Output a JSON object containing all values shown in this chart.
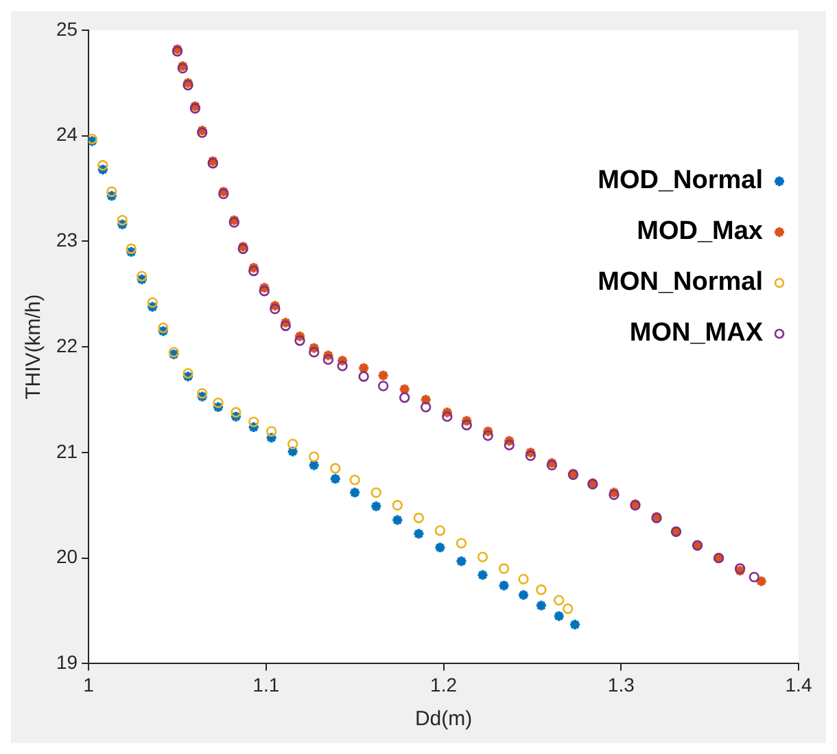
{
  "chart_data": {
    "type": "scatter",
    "xlabel": "Dd(m)",
    "ylabel": "THIV(km/h)",
    "xlim": [
      1,
      1.4
    ],
    "xticks": [
      1,
      1.1,
      1.2,
      1.3,
      1.4
    ],
    "ylim": [
      19,
      25
    ],
    "yticks": [
      19,
      20,
      21,
      22,
      23,
      24,
      25
    ],
    "grid": false,
    "legend": "top right",
    "series": [
      {
        "name": "MOD_Normal",
        "color": "#0072bd",
        "marker": "cross",
        "x": [
          1.002,
          1.008,
          1.013,
          1.019,
          1.024,
          1.03,
          1.036,
          1.042,
          1.048,
          1.056,
          1.064,
          1.073,
          1.083,
          1.093,
          1.103,
          1.115,
          1.127,
          1.139,
          1.15,
          1.162,
          1.174,
          1.186,
          1.198,
          1.21,
          1.222,
          1.234,
          1.245,
          1.255,
          1.265,
          1.274
        ],
        "values": [
          23.95,
          23.68,
          23.43,
          23.16,
          22.9,
          22.64,
          22.38,
          22.15,
          21.93,
          21.72,
          21.53,
          21.43,
          21.34,
          21.24,
          21.14,
          21.01,
          20.88,
          20.75,
          20.62,
          20.49,
          20.36,
          20.23,
          20.1,
          19.97,
          19.84,
          19.74,
          19.65,
          19.55,
          19.45,
          19.37
        ]
      },
      {
        "name": "MOD_Max",
        "color": "#d95319",
        "marker": "cross",
        "x": [
          1.05,
          1.053,
          1.056,
          1.06,
          1.064,
          1.07,
          1.076,
          1.082,
          1.087,
          1.093,
          1.099,
          1.105,
          1.111,
          1.119,
          1.127,
          1.135,
          1.143,
          1.155,
          1.166,
          1.178,
          1.19,
          1.202,
          1.213,
          1.225,
          1.237,
          1.249,
          1.261,
          1.273,
          1.284,
          1.296,
          1.308,
          1.32,
          1.331,
          1.343,
          1.355,
          1.367,
          1.379
        ],
        "values": [
          24.82,
          24.66,
          24.5,
          24.28,
          24.05,
          23.76,
          23.47,
          23.2,
          22.95,
          22.75,
          22.56,
          22.39,
          22.23,
          22.1,
          21.99,
          21.92,
          21.87,
          21.8,
          21.73,
          21.6,
          21.5,
          21.38,
          21.3,
          21.2,
          21.11,
          21.0,
          20.9,
          20.8,
          20.71,
          20.62,
          20.51,
          20.39,
          20.25,
          20.12,
          20.0,
          19.88,
          19.78
        ]
      },
      {
        "name": "MON_Normal",
        "color": "#edb120",
        "marker": "circle",
        "x": [
          1.002,
          1.008,
          1.013,
          1.019,
          1.024,
          1.03,
          1.036,
          1.042,
          1.048,
          1.056,
          1.064,
          1.073,
          1.083,
          1.093,
          1.103,
          1.115,
          1.127,
          1.139,
          1.15,
          1.162,
          1.174,
          1.186,
          1.198,
          1.21,
          1.222,
          1.234,
          1.245,
          1.255,
          1.265,
          1.27
        ],
        "values": [
          23.97,
          23.72,
          23.47,
          23.2,
          22.93,
          22.67,
          22.42,
          22.18,
          21.95,
          21.75,
          21.56,
          21.47,
          21.38,
          21.29,
          21.2,
          21.08,
          20.96,
          20.85,
          20.74,
          20.62,
          20.5,
          20.38,
          20.26,
          20.14,
          20.01,
          19.9,
          19.8,
          19.7,
          19.6,
          19.52
        ]
      },
      {
        "name": "MON_MAX",
        "color": "#7e2f8e",
        "marker": "circle",
        "x": [
          1.05,
          1.053,
          1.056,
          1.06,
          1.064,
          1.07,
          1.076,
          1.082,
          1.087,
          1.093,
          1.099,
          1.105,
          1.111,
          1.119,
          1.127,
          1.135,
          1.143,
          1.155,
          1.166,
          1.178,
          1.19,
          1.202,
          1.213,
          1.225,
          1.237,
          1.249,
          1.261,
          1.273,
          1.284,
          1.296,
          1.308,
          1.32,
          1.331,
          1.343,
          1.355,
          1.367,
          1.375
        ],
        "values": [
          24.8,
          24.64,
          24.48,
          24.26,
          24.03,
          23.74,
          23.45,
          23.18,
          22.93,
          22.72,
          22.53,
          22.36,
          22.2,
          22.06,
          21.95,
          21.88,
          21.82,
          21.72,
          21.63,
          21.52,
          21.43,
          21.34,
          21.26,
          21.16,
          21.07,
          20.97,
          20.88,
          20.79,
          20.7,
          20.6,
          20.5,
          20.38,
          20.25,
          20.12,
          20.0,
          19.9,
          19.82
        ]
      }
    ]
  }
}
